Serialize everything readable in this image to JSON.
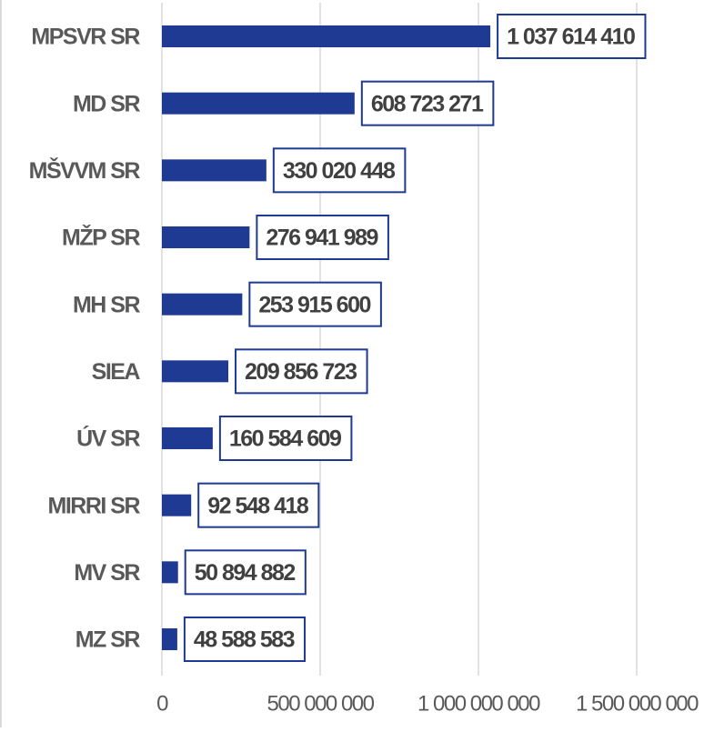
{
  "chart_data": {
    "type": "hbar",
    "categories": [
      "MPSVR SR",
      "MD SR",
      "MŠVVM SR",
      "MŽP SR",
      "MH SR",
      "SIEA",
      "ÚV SR",
      "MIRRI SR",
      "MV SR",
      "MZ SR"
    ],
    "values": [
      1037614410,
      608723271,
      330020448,
      276941989,
      253915600,
      209856723,
      160584609,
      92548418,
      50894882,
      48588583
    ],
    "value_labels": [
      "1 037 614 410",
      "608 723 271",
      "330 020 448",
      "276 941 989",
      "253 915 600",
      "209 856 723",
      "160 584 609",
      "92 548 418",
      "50 894 882",
      "48 588 583"
    ],
    "color": "#1f3a93",
    "xlim": [
      0,
      1500000000
    ],
    "xticks": [
      0,
      {
        "value": 500000000,
        "label": "500 000 000"
      },
      {
        "value": 1000000000,
        "label": "1 000 000 000"
      },
      {
        "value": 1500000000,
        "label": "1 500 000 000"
      }
    ],
    "grid": true
  }
}
